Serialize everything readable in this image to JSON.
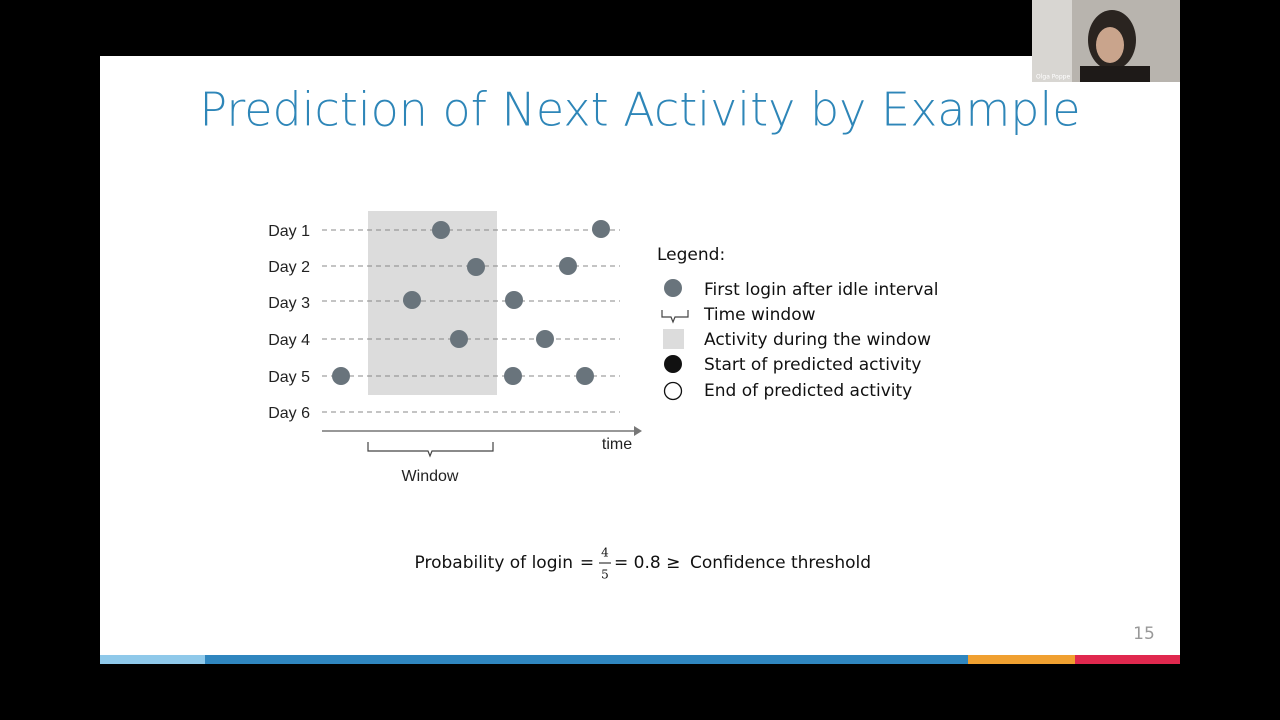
{
  "slide": {
    "title": "Prediction of Next Activity by Example",
    "diagram": {
      "days": [
        "Day 1",
        "Day 2",
        "Day 3",
        "Day 4",
        "Day 5",
        "Day 6"
      ],
      "axis_label": "time",
      "window_label": "Window"
    },
    "legend": {
      "title": "Legend:",
      "items": [
        "First login after idle interval",
        "Time window",
        "Activity during the window",
        "Start of predicted activity",
        "End of predicted activity"
      ]
    },
    "formula": {
      "lead": "Probability of login",
      "eq1": "=",
      "numerator": "4",
      "denominator": "5",
      "result": "= 0.8 ≥",
      "tail": "Confidence threshold"
    },
    "page_number": "15"
  },
  "webcam": {
    "name": "Olga Poppe"
  }
}
